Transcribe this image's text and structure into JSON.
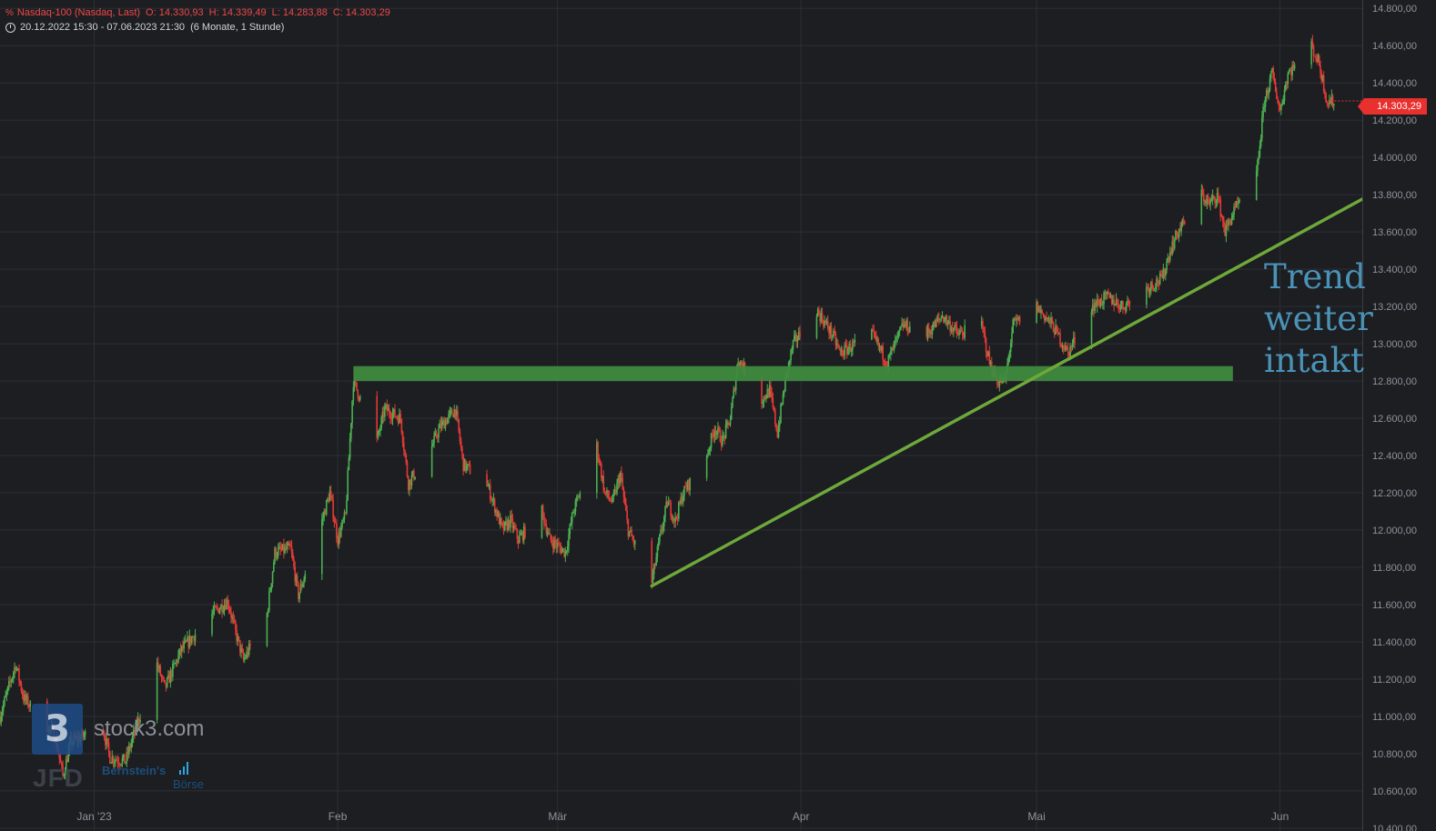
{
  "header": {
    "instrument": "Nasdaq-100 (Nasdaq, Last)",
    "open": "O: 14.330,93",
    "high": "H: 14.339,49",
    "low": "L: 14.283,88",
    "close": "C: 14.303,29",
    "range": "20.12.2022 15:30 - 07.06.2023 21:30",
    "period": "(6 Monate, 1 Stunde)"
  },
  "annotation": [
    "Trend",
    "weiter",
    "intakt"
  ],
  "watermark": {
    "logo_glyph": "3",
    "site": "stock3.com",
    "broker": "JFD",
    "partner": "Bernstein's",
    "partner2": "Börse"
  },
  "last_price_label": "14.303,29",
  "colors": {
    "background": "#1c1e22",
    "grid": "#2c2f35",
    "candle_up": "#4caf50",
    "candle_down": "#e53935",
    "support_zone": "#3f8a3f",
    "trendline": "#6fa83a",
    "annotation": "#4a93b7",
    "price_tag": "#e8302e"
  },
  "chart_data": {
    "type": "candlestick",
    "title": "",
    "x_labels": [
      {
        "date": "2023-01-01",
        "label": "Jan '23"
      },
      {
        "date": "2023-02-01",
        "label": "Feb"
      },
      {
        "date": "2023-03-01",
        "label": "Mär"
      },
      {
        "date": "2023-04-01",
        "label": "Apr"
      },
      {
        "date": "2023-05-01",
        "label": "Mai"
      },
      {
        "date": "2023-06-01",
        "label": "Jun"
      }
    ],
    "x_range": [
      "2022-12-20",
      "2023-06-07"
    ],
    "y_ticks": [
      {
        "value": 10400,
        "label": "10.400,00"
      },
      {
        "value": 10600,
        "label": "10.600,00"
      },
      {
        "value": 10800,
        "label": "10.800,00"
      },
      {
        "value": 11000,
        "label": "11.000,00"
      },
      {
        "value": 11200,
        "label": "11.200,00"
      },
      {
        "value": 11400,
        "label": "11.400,00"
      },
      {
        "value": 11600,
        "label": "11.600,00"
      },
      {
        "value": 11800,
        "label": "11.800,00"
      },
      {
        "value": 12000,
        "label": "12.000,00"
      },
      {
        "value": 12200,
        "label": "12.200,00"
      },
      {
        "value": 12400,
        "label": "12.400,00"
      },
      {
        "value": 12600,
        "label": "12.600,00"
      },
      {
        "value": 12800,
        "label": "12.800,00"
      },
      {
        "value": 13000,
        "label": "13.000,00"
      },
      {
        "value": 13200,
        "label": "13.200,00"
      },
      {
        "value": 13400,
        "label": "13.400,00"
      },
      {
        "value": 13600,
        "label": "13.600,00"
      },
      {
        "value": 13800,
        "label": "13.800,00"
      },
      {
        "value": 14000,
        "label": "14.000,00"
      },
      {
        "value": 14200,
        "label": "14.200,00"
      },
      {
        "value": 14400,
        "label": "14.400,00"
      },
      {
        "value": 14600,
        "label": "14.600,00"
      },
      {
        "value": 14800,
        "label": "14.800,00"
      }
    ],
    "y_range": [
      10380,
      14845
    ],
    "last_price": 14303.29,
    "price_path": [
      [
        "2022-12-20",
        11000
      ],
      [
        "2022-12-22",
        11280
      ],
      [
        "2022-12-23",
        11100
      ],
      [
        "2022-12-27",
        10900
      ],
      [
        "2022-12-28",
        10680
      ],
      [
        "2022-12-29",
        10860
      ],
      [
        "2023-01-02",
        10950
      ],
      [
        "2023-01-03",
        10780
      ],
      [
        "2023-01-05",
        10760
      ],
      [
        "2023-01-06",
        10900
      ],
      [
        "2023-01-09",
        11280
      ],
      [
        "2023-01-10",
        11150
      ],
      [
        "2023-01-12",
        11350
      ],
      [
        "2023-01-16",
        11550
      ],
      [
        "2023-01-18",
        11620
      ],
      [
        "2023-01-19",
        11450
      ],
      [
        "2023-01-20",
        11300
      ],
      [
        "2023-01-23",
        11550
      ],
      [
        "2023-01-24",
        11880
      ],
      [
        "2023-01-26",
        11900
      ],
      [
        "2023-01-27",
        11650
      ],
      [
        "2023-01-30",
        12050
      ],
      [
        "2023-01-31",
        12200
      ],
      [
        "2023-02-01",
        11950
      ],
      [
        "2023-02-02",
        12080
      ],
      [
        "2023-02-03",
        12800
      ],
      [
        "2023-02-06",
        12480
      ],
      [
        "2023-02-07",
        12650
      ],
      [
        "2023-02-09",
        12600
      ],
      [
        "2023-02-10",
        12250
      ],
      [
        "2023-02-13",
        12450
      ],
      [
        "2023-02-14",
        12550
      ],
      [
        "2023-02-16",
        12650
      ],
      [
        "2023-02-17",
        12350
      ],
      [
        "2023-02-20",
        12250
      ],
      [
        "2023-02-22",
        12000
      ],
      [
        "2023-02-23",
        12050
      ],
      [
        "2023-02-24",
        11950
      ],
      [
        "2023-02-27",
        12100
      ],
      [
        "2023-02-28",
        11950
      ],
      [
        "2023-03-02",
        11880
      ],
      [
        "2023-03-03",
        12100
      ],
      [
        "2023-03-06",
        12450
      ],
      [
        "2023-03-07",
        12200
      ],
      [
        "2023-03-08",
        12150
      ],
      [
        "2023-03-09",
        12300
      ],
      [
        "2023-03-10",
        12000
      ],
      [
        "2023-03-13",
        11720
      ],
      [
        "2023-03-14",
        11950
      ],
      [
        "2023-03-15",
        12150
      ],
      [
        "2023-03-16",
        12050
      ],
      [
        "2023-03-17",
        12200
      ],
      [
        "2023-03-20",
        12400
      ],
      [
        "2023-03-21",
        12550
      ],
      [
        "2023-03-22",
        12480
      ],
      [
        "2023-03-23",
        12600
      ],
      [
        "2023-03-24",
        12920
      ],
      [
        "2023-03-27",
        12700
      ],
      [
        "2023-03-28",
        12750
      ],
      [
        "2023-03-29",
        12520
      ],
      [
        "2023-03-30",
        12800
      ],
      [
        "2023-03-31",
        13000
      ],
      [
        "2023-04-03",
        13180
      ],
      [
        "2023-04-05",
        13050
      ],
      [
        "2023-04-06",
        12950
      ],
      [
        "2023-04-10",
        13050
      ],
      [
        "2023-04-12",
        12900
      ],
      [
        "2023-04-14",
        13100
      ],
      [
        "2023-04-17",
        13050
      ],
      [
        "2023-04-19",
        13150
      ],
      [
        "2023-04-21",
        13050
      ],
      [
        "2023-04-24",
        13100
      ],
      [
        "2023-04-25",
        12900
      ],
      [
        "2023-04-26",
        12800
      ],
      [
        "2023-04-27",
        12800
      ],
      [
        "2023-04-28",
        13100
      ],
      [
        "2023-05-01",
        13200
      ],
      [
        "2023-05-03",
        13100
      ],
      [
        "2023-05-05",
        12950
      ],
      [
        "2023-05-08",
        13200
      ],
      [
        "2023-05-10",
        13250
      ],
      [
        "2023-05-12",
        13200
      ],
      [
        "2023-05-15",
        13300
      ],
      [
        "2023-05-17",
        13350
      ],
      [
        "2023-05-18",
        13500
      ],
      [
        "2023-05-19",
        13600
      ],
      [
        "2023-05-22",
        13800
      ],
      [
        "2023-05-23",
        13750
      ],
      [
        "2023-05-24",
        13800
      ],
      [
        "2023-05-25",
        13600
      ],
      [
        "2023-05-26",
        13700
      ],
      [
        "2023-05-29",
        13900
      ],
      [
        "2023-05-30",
        14300
      ],
      [
        "2023-05-31",
        14450
      ],
      [
        "2023-06-01",
        14250
      ],
      [
        "2023-06-02",
        14450
      ],
      [
        "2023-06-05",
        14600
      ],
      [
        "2023-06-06",
        14500
      ],
      [
        "2023-06-07",
        14300
      ]
    ],
    "support_zone": {
      "from": "2023-02-03",
      "to": "2023-05-26",
      "low": 12800,
      "high": 12880
    },
    "trendline": {
      "start": [
        "2023-03-13",
        11700
      ],
      "end": [
        "2023-06-07",
        13780
      ]
    }
  }
}
